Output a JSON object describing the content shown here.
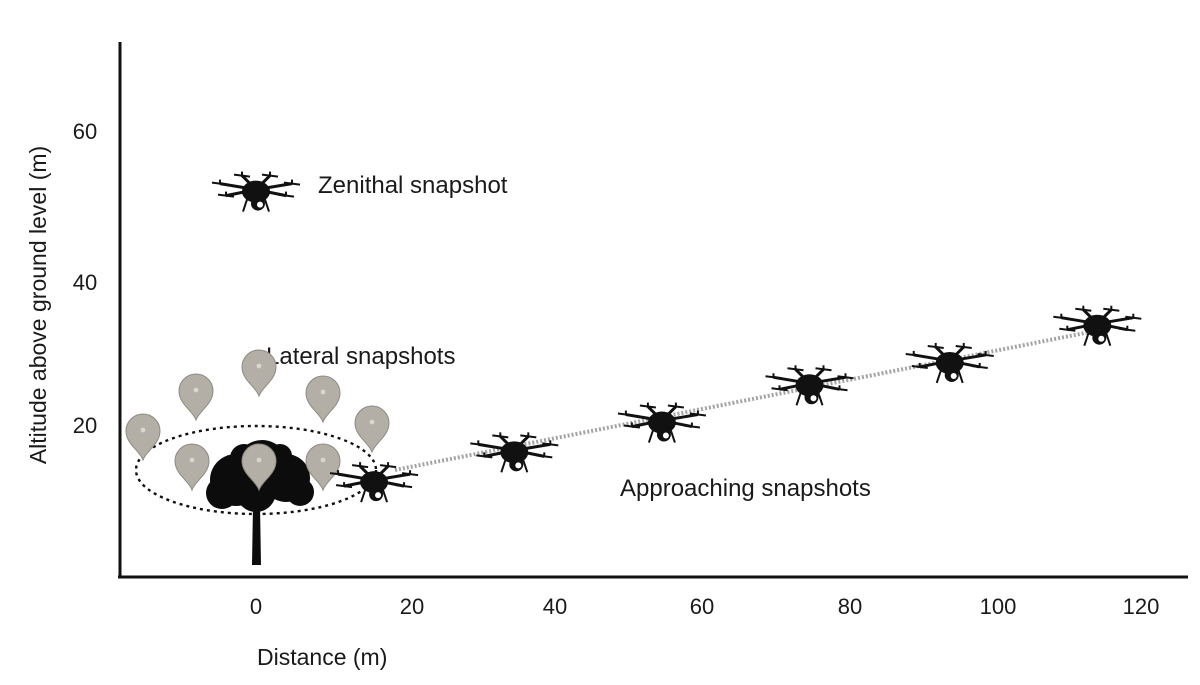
{
  "axes": {
    "xlabel": "Distance (m)",
    "ylabel": "Altitude above ground level (m)",
    "x_ticks": [
      "0",
      "20",
      "40",
      "60",
      "80",
      "100",
      "120"
    ],
    "y_ticks": [
      "20",
      "40",
      "60"
    ]
  },
  "annotations": {
    "zenithal": "Zenithal snapshot",
    "lateral": "Lateral snapshots",
    "approaching": "Approaching snapshots"
  },
  "drones": {
    "zenithal": {
      "x": 0,
      "y": 52
    },
    "approaching": [
      {
        "x": 16,
        "y": 13
      },
      {
        "x": 35,
        "y": 17
      },
      {
        "x": 55,
        "y": 21
      },
      {
        "x": 75,
        "y": 26
      },
      {
        "x": 94,
        "y": 29
      },
      {
        "x": 114,
        "y": 34
      }
    ]
  },
  "colors": {
    "ink": "#111111",
    "marker": "#b3aea6",
    "marker_dot": "#d9d6d0",
    "path": "#9a9a9a"
  },
  "icons": {
    "drone": "drone-icon",
    "tree": "tree-icon",
    "marker": "location-marker-icon"
  }
}
